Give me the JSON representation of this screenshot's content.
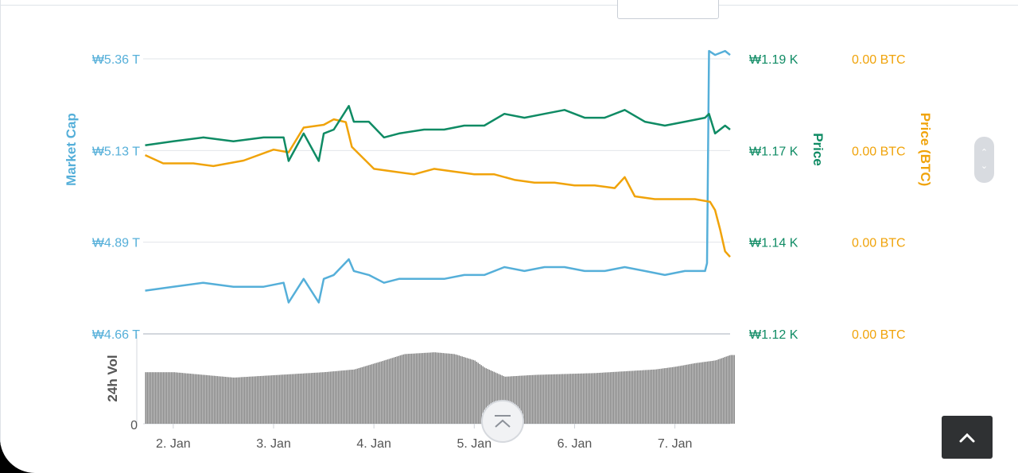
{
  "colors": {
    "market_cap": "#55afd9",
    "price": "#0f8b64",
    "price_btc": "#f0a30a",
    "volume": "#7b7b7b",
    "grid": "#e2e5ea",
    "axis_text": "#555555",
    "back_to_top_bg": "#2f3133"
  },
  "icons": {
    "scroll_up": "chevron-up-icon",
    "scroll_down": "chevron-down-icon",
    "scroll_to_top": "chevron-up-bar-icon",
    "back_to_top": "chevron-up-icon"
  },
  "chart_data": {
    "type": "line",
    "x_ticks": [
      "2. Jan",
      "3. Jan",
      "4. Jan",
      "5. Jan",
      "6. Jan",
      "7. Jan"
    ],
    "x_range": [
      1.7,
      7.55
    ],
    "axes": {
      "market_cap": {
        "label": "Market Cap",
        "ticks": [
          "₩5.36 T",
          "₩5.13 T",
          "₩4.89 T",
          "₩4.66 T"
        ],
        "range_trillion": [
          4.66,
          5.36
        ]
      },
      "price": {
        "label": "Price",
        "ticks": [
          "₩1.19 K",
          "₩1.17 K",
          "₩1.14 K",
          "₩1.12 K"
        ],
        "range_thousand": [
          1.12,
          1.19
        ]
      },
      "price_btc": {
        "label": "Price (BTC)",
        "ticks": [
          "0.00 BTC",
          "0.00 BTC",
          "0.00 BTC",
          "0.00 BTC"
        ],
        "range": [
          0,
          1
        ]
      },
      "volume": {
        "label": "24h Vol",
        "ticks": [
          "0"
        ]
      }
    },
    "series": [
      {
        "key": "market_cap",
        "x": [
          1.72,
          2.0,
          2.3,
          2.6,
          2.9,
          3.1,
          3.15,
          3.3,
          3.45,
          3.5,
          3.6,
          3.75,
          3.8,
          3.95,
          4.1,
          4.25,
          4.5,
          4.7,
          4.9,
          5.1,
          5.3,
          5.5,
          5.7,
          5.9,
          6.1,
          6.3,
          6.5,
          6.7,
          6.9,
          7.1,
          7.3,
          7.32,
          7.34,
          7.4,
          7.5,
          7.55
        ],
        "values": [
          4.77,
          4.78,
          4.79,
          4.78,
          4.78,
          4.79,
          4.74,
          4.8,
          4.74,
          4.8,
          4.81,
          4.85,
          4.82,
          4.81,
          4.79,
          4.8,
          4.8,
          4.8,
          4.81,
          4.81,
          4.83,
          4.82,
          4.83,
          4.83,
          4.82,
          4.82,
          4.83,
          4.82,
          4.81,
          4.82,
          4.82,
          4.84,
          5.38,
          5.37,
          5.38,
          5.37
        ]
      },
      {
        "key": "price",
        "x": [
          1.72,
          2.0,
          2.3,
          2.6,
          2.9,
          3.1,
          3.15,
          3.3,
          3.45,
          3.5,
          3.6,
          3.75,
          3.8,
          3.95,
          4.1,
          4.25,
          4.5,
          4.7,
          4.9,
          5.1,
          5.3,
          5.5,
          5.7,
          5.9,
          6.1,
          6.3,
          6.5,
          6.7,
          6.9,
          7.1,
          7.3,
          7.34,
          7.4,
          7.5,
          7.55
        ],
        "values": [
          1.168,
          1.169,
          1.17,
          1.169,
          1.17,
          1.17,
          1.164,
          1.171,
          1.164,
          1.171,
          1.172,
          1.178,
          1.174,
          1.174,
          1.17,
          1.171,
          1.172,
          1.172,
          1.173,
          1.173,
          1.176,
          1.175,
          1.176,
          1.177,
          1.175,
          1.175,
          1.177,
          1.174,
          1.173,
          1.174,
          1.175,
          1.176,
          1.171,
          1.173,
          1.172
        ]
      },
      {
        "key": "price_btc",
        "x": [
          1.72,
          1.9,
          2.2,
          2.4,
          2.7,
          3.0,
          3.15,
          3.3,
          3.5,
          3.6,
          3.72,
          3.78,
          4.0,
          4.2,
          4.4,
          4.6,
          4.8,
          5.0,
          5.2,
          5.4,
          5.6,
          5.8,
          6.0,
          6.2,
          6.4,
          6.5,
          6.6,
          6.8,
          7.0,
          7.2,
          7.35,
          7.4,
          7.45,
          7.5,
          7.55
        ],
        "values": [
          0.65,
          0.62,
          0.62,
          0.61,
          0.63,
          0.67,
          0.66,
          0.75,
          0.76,
          0.78,
          0.77,
          0.68,
          0.6,
          0.59,
          0.58,
          0.6,
          0.59,
          0.58,
          0.58,
          0.56,
          0.55,
          0.55,
          0.54,
          0.54,
          0.53,
          0.57,
          0.5,
          0.49,
          0.49,
          0.49,
          0.48,
          0.45,
          0.38,
          0.3,
          0.28
        ]
      }
    ],
    "volume": {
      "x": [
        1.72,
        2.0,
        2.3,
        2.6,
        2.9,
        3.2,
        3.5,
        3.8,
        4.1,
        4.3,
        4.6,
        4.8,
        5.0,
        5.1,
        5.3,
        5.6,
        5.9,
        6.2,
        6.5,
        6.8,
        7.0,
        7.2,
        7.4,
        7.55
      ],
      "values": [
        0.57,
        0.57,
        0.54,
        0.51,
        0.53,
        0.55,
        0.57,
        0.6,
        0.7,
        0.77,
        0.79,
        0.77,
        0.7,
        0.62,
        0.52,
        0.54,
        0.55,
        0.56,
        0.58,
        0.6,
        0.63,
        0.67,
        0.7,
        0.76
      ]
    }
  }
}
